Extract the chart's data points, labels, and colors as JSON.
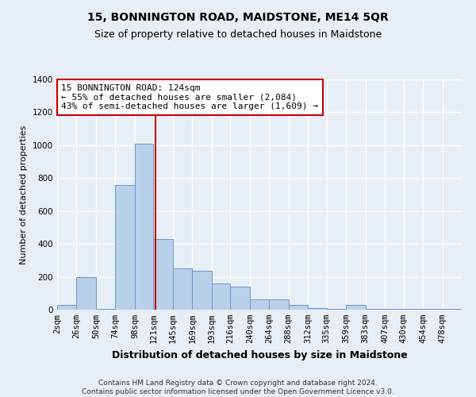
{
  "title": "15, BONNINGTON ROAD, MAIDSTONE, ME14 5QR",
  "subtitle": "Size of property relative to detached houses in Maidstone",
  "xlabel": "Distribution of detached houses by size in Maidstone",
  "ylabel": "Number of detached properties",
  "footer_line1": "Contains HM Land Registry data © Crown copyright and database right 2024.",
  "footer_line2": "Contains public sector information licensed under the Open Government Licence v3.0.",
  "annotation_line1": "15 BONNINGTON ROAD: 124sqm",
  "annotation_line2": "← 55% of detached houses are smaller (2,084)",
  "annotation_line3": "43% of semi-detached houses are larger (1,609) →",
  "bar_color": "#b8d0ea",
  "bar_edge_color": "#6699cc",
  "vline_color": "#cc0000",
  "vline_x": 124,
  "annotation_box_edge_color": "#cc0000",
  "categories": [
    "2sqm",
    "26sqm",
    "50sqm",
    "74sqm",
    "98sqm",
    "121sqm",
    "145sqm",
    "169sqm",
    "193sqm",
    "216sqm",
    "240sqm",
    "264sqm",
    "288sqm",
    "312sqm",
    "335sqm",
    "359sqm",
    "383sqm",
    "407sqm",
    "430sqm",
    "454sqm",
    "478sqm"
  ],
  "bin_edges": [
    2,
    26,
    50,
    74,
    98,
    121,
    145,
    169,
    193,
    216,
    240,
    264,
    288,
    312,
    335,
    359,
    383,
    407,
    430,
    454,
    478,
    502
  ],
  "values": [
    28,
    200,
    5,
    760,
    1010,
    430,
    250,
    235,
    160,
    140,
    65,
    65,
    28,
    10,
    5,
    28,
    5,
    5,
    5,
    5,
    5
  ],
  "ylim": [
    0,
    1400
  ],
  "yticks": [
    0,
    200,
    400,
    600,
    800,
    1000,
    1200,
    1400
  ],
  "background_color": "#e8eef5",
  "plot_bg_color": "#e8eef5",
  "grid_color": "#ffffff",
  "title_fontsize": 10,
  "subtitle_fontsize": 9,
  "tick_fontsize": 7.5,
  "ylabel_fontsize": 8,
  "xlabel_fontsize": 9,
  "footer_fontsize": 6.5
}
